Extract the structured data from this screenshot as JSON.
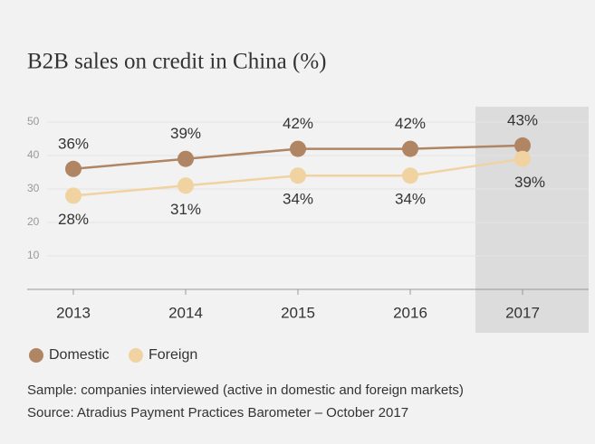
{
  "chart_data": {
    "type": "line",
    "title": "B2B sales on credit in China (%)",
    "categories": [
      "2013",
      "2014",
      "2015",
      "2016",
      "2017"
    ],
    "series": [
      {
        "name": "Domestic",
        "color": "#b08563",
        "values": [
          36,
          39,
          42,
          42,
          43
        ],
        "value_labels": [
          "36%",
          "39%",
          "42%",
          "42%",
          "43%"
        ]
      },
      {
        "name": "Foreign",
        "color": "#f0d3a0",
        "values": [
          28,
          31,
          34,
          34,
          39
        ],
        "value_labels": [
          "28%",
          "31%",
          "34%",
          "34%",
          "39%"
        ]
      }
    ],
    "ylim": [
      0,
      50
    ],
    "yticks": [
      10,
      20,
      30,
      40,
      50
    ],
    "grid": true,
    "notes": [
      "Sample: companies interviewed (active in domestic and foreign markets)",
      "Source: Atradius Payment Practices Barometer – October 2017"
    ]
  }
}
